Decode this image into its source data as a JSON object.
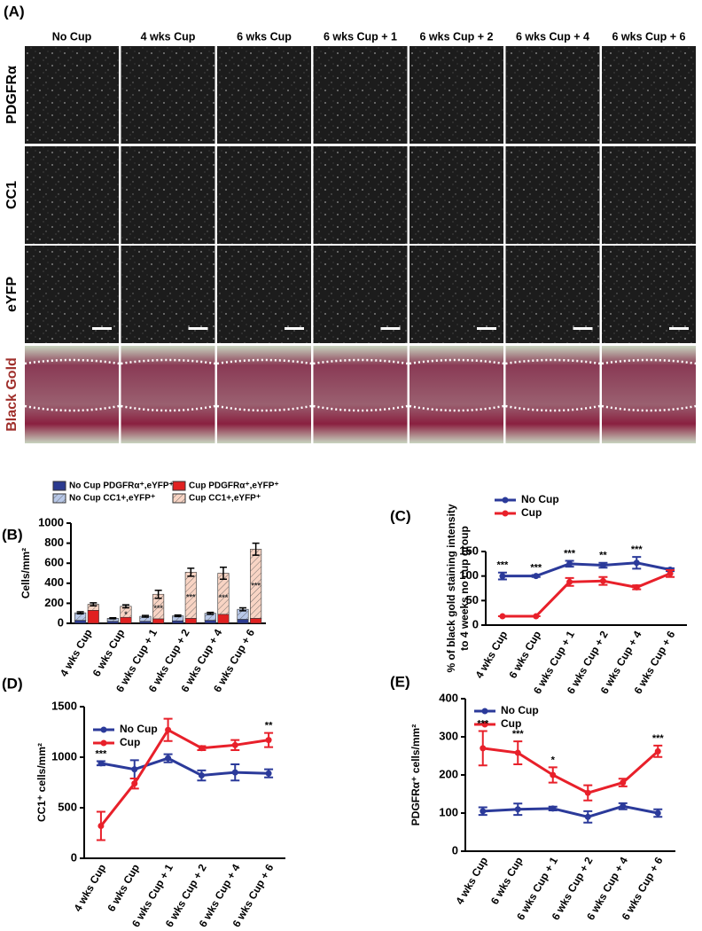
{
  "image_grid": {
    "panel": "(A)",
    "columns": [
      "No Cup",
      "4 wks Cup",
      "6 wks Cup",
      "6 wks Cup + 1",
      "6 wks Cup + 2",
      "6 wks Cup + 4",
      "6 wks Cup + 6"
    ],
    "rows": [
      "PDGFRα",
      "CC1",
      "eYFP",
      "Black Gold"
    ]
  },
  "chart_data": [
    {
      "type": "bar",
      "panel": "(B)",
      "ylabel": "Cells/mm²",
      "categories": [
        "4 wks Cup",
        "6 wks Cup",
        "6 wks Cup + 1",
        "6 wks Cup + 2",
        "6 wks Cup + 4",
        "6 wks Cup + 6"
      ],
      "series": [
        {
          "name": "No Cup PDGFRα⁺,eYFP⁺",
          "color": "#2b3a8f",
          "values": [
            30,
            20,
            20,
            25,
            30,
            40
          ]
        },
        {
          "name": "No Cup CC1+,eYFP⁺",
          "color": "#b8c8e8",
          "pattern": "hatch",
          "values": [
            75,
            30,
            50,
            50,
            70,
            100
          ],
          "errors": [
            10,
            5,
            8,
            8,
            10,
            15
          ]
        },
        {
          "name": "Cup PDGFRα⁺,eYFP⁺",
          "color": "#e02020",
          "values": [
            130,
            60,
            45,
            50,
            90,
            50
          ]
        },
        {
          "name": "Cup CC1+,eYFP⁺",
          "color": "#f8d4c4",
          "pattern": "hatch",
          "values": [
            60,
            110,
            245,
            460,
            410,
            690
          ],
          "errors": [
            15,
            15,
            40,
            40,
            60,
            60
          ]
        }
      ],
      "annotations": [
        {
          "index": 1,
          "text": "*"
        },
        {
          "index": 2,
          "text": "***"
        },
        {
          "index": 3,
          "text": "***"
        },
        {
          "index": 4,
          "text": "***"
        },
        {
          "index": 5,
          "text": "***"
        }
      ],
      "ylim": [
        0,
        1000
      ],
      "yticks": [
        0,
        200,
        400,
        600,
        800,
        1000
      ]
    },
    {
      "type": "line",
      "panel": "(C)",
      "ylabel": [
        "% of black gold staining intensity",
        "to 4 weeks no cup group"
      ],
      "categories": [
        "4 wks Cup",
        "6 wks Cup",
        "6 wks Cup + 1",
        "6 wks Cup + 2",
        "6 wks Cup + 4",
        "6 wks Cup + 6"
      ],
      "series": [
        {
          "name": "No Cup",
          "color": "#2b3a9a",
          "values": [
            100,
            100,
            125,
            122,
            127,
            113
          ],
          "errors": [
            7,
            2,
            6,
            5,
            12,
            3
          ]
        },
        {
          "name": "Cup",
          "color": "#e8202a",
          "values": [
            18,
            18,
            88,
            90,
            77,
            105
          ],
          "errors": [
            0,
            0,
            8,
            8,
            4,
            7
          ]
        }
      ],
      "annotations": [
        {
          "index": 0,
          "text": "***"
        },
        {
          "index": 1,
          "text": "***"
        },
        {
          "index": 2,
          "text": "***"
        },
        {
          "index": 3,
          "text": "**"
        },
        {
          "index": 4,
          "text": "***"
        }
      ],
      "ylim": [
        0,
        150
      ],
      "yticks": [
        0,
        50,
        100,
        150
      ]
    },
    {
      "type": "line",
      "panel": "(D)",
      "ylabel": "CC1⁺ cells/mm²",
      "categories": [
        "4 wks Cup",
        "6 wks Cup",
        "6 wks Cup + 1",
        "6 wks Cup + 2",
        "6 wks Cup + 4",
        "6 wks Cup + 6"
      ],
      "series": [
        {
          "name": "No Cup",
          "color": "#2b3a9a",
          "values": [
            940,
            880,
            990,
            820,
            850,
            840
          ],
          "errors": [
            20,
            90,
            40,
            50,
            80,
            40
          ]
        },
        {
          "name": "Cup",
          "color": "#e8202a",
          "values": [
            320,
            740,
            1270,
            1090,
            1120,
            1170
          ],
          "errors": [
            140,
            50,
            110,
            20,
            50,
            70
          ]
        }
      ],
      "annotations": [
        {
          "index": 0,
          "text": "***"
        },
        {
          "index": 5,
          "text": "**"
        }
      ],
      "ylim": [
        0,
        1500
      ],
      "yticks": [
        0,
        500,
        1000,
        1500
      ]
    },
    {
      "type": "line",
      "panel": "(E)",
      "ylabel": "PDGFRα⁺ cells/mm²",
      "categories": [
        "4 wks Cup",
        "6 wks Cup",
        "6 wks Cup + 1",
        "6 wks Cup + 2",
        "6 wks Cup + 4",
        "6 wks Cup + 6"
      ],
      "series": [
        {
          "name": "No Cup",
          "color": "#2b3a9a",
          "values": [
            105,
            110,
            112,
            90,
            118,
            100
          ],
          "errors": [
            10,
            15,
            5,
            15,
            8,
            10
          ]
        },
        {
          "name": "Cup",
          "color": "#e8202a",
          "values": [
            270,
            258,
            200,
            153,
            180,
            262
          ],
          "errors": [
            45,
            30,
            20,
            20,
            10,
            15
          ]
        }
      ],
      "annotations": [
        {
          "index": 0,
          "text": "***"
        },
        {
          "index": 1,
          "text": "***"
        },
        {
          "index": 2,
          "text": "*"
        },
        {
          "index": 5,
          "text": "***"
        }
      ],
      "ylim": [
        0,
        400
      ],
      "yticks": [
        0,
        100,
        200,
        300,
        400
      ]
    }
  ]
}
